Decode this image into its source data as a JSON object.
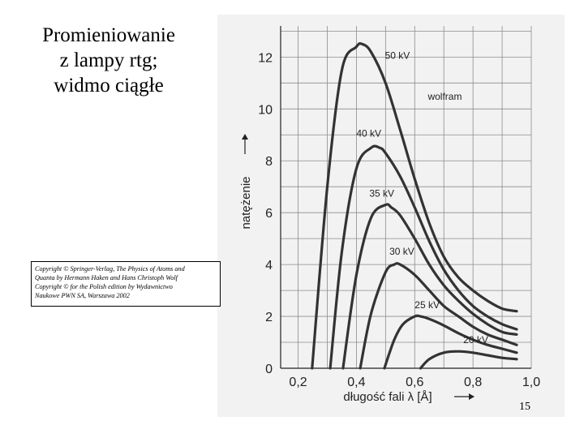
{
  "slide": {
    "title_lines": [
      "Promieniowanie",
      "z lampy rtg;",
      "widmo ciągłe"
    ],
    "copyright_lines": [
      "Copyright © Springer-Verlag, The Physics of Atoms and",
      "Quanta by Hermann Haken and Hans Christoph Wolf",
      "Copyright © for the Polish edition by Wydawnictwo",
      "Naukowe PWN SA, Warszawa 2002"
    ],
    "page_number": "15"
  },
  "chart_data": {
    "type": "line",
    "xlabel": "długość fali λ [Å]",
    "ylabel": "natężenie",
    "xlim": [
      0.14,
      1.0
    ],
    "ylim": [
      0,
      13.2
    ],
    "x_ticks": [
      "0,2",
      "0,4",
      "0,6",
      "0,8",
      "1,0"
    ],
    "y_ticks": [
      "0",
      "2",
      "4",
      "6",
      "8",
      "10",
      "12"
    ],
    "grid": true,
    "annotations": [
      "wolfram"
    ],
    "series": [
      {
        "name": "50 kV",
        "x": [
          0.248,
          0.3,
          0.35,
          0.4,
          0.42,
          0.45,
          0.5,
          0.55,
          0.6,
          0.65,
          0.7,
          0.75,
          0.8,
          0.85,
          0.9,
          0.95
        ],
        "y": [
          0,
          7.0,
          11.5,
          12.4,
          12.5,
          12.2,
          11.0,
          9.2,
          7.3,
          5.6,
          4.3,
          3.5,
          3.0,
          2.6,
          2.3,
          2.2
        ]
      },
      {
        "name": "40 kV",
        "x": [
          0.31,
          0.35,
          0.4,
          0.45,
          0.48,
          0.5,
          0.55,
          0.6,
          0.65,
          0.7,
          0.75,
          0.8,
          0.85,
          0.9,
          0.95
        ],
        "y": [
          0,
          4.5,
          7.7,
          8.5,
          8.5,
          8.3,
          7.4,
          6.2,
          4.9,
          3.8,
          3.0,
          2.4,
          2.0,
          1.7,
          1.5
        ]
      },
      {
        "name": "35 kV",
        "x": [
          0.354,
          0.4,
          0.45,
          0.5,
          0.52,
          0.55,
          0.6,
          0.65,
          0.7,
          0.75,
          0.8,
          0.85,
          0.9,
          0.95
        ],
        "y": [
          0,
          3.6,
          5.8,
          6.3,
          6.2,
          5.9,
          5.0,
          4.0,
          3.2,
          2.6,
          2.1,
          1.7,
          1.4,
          1.3
        ]
      },
      {
        "name": "30 kV",
        "x": [
          0.413,
          0.45,
          0.5,
          0.53,
          0.55,
          0.6,
          0.65,
          0.7,
          0.75,
          0.8,
          0.85,
          0.9,
          0.95
        ],
        "y": [
          0,
          2.1,
          3.7,
          4.0,
          4.0,
          3.6,
          3.0,
          2.4,
          2.0,
          1.6,
          1.3,
          1.1,
          0.9
        ]
      },
      {
        "name": "25 kV",
        "x": [
          0.496,
          0.53,
          0.56,
          0.6,
          0.62,
          0.65,
          0.7,
          0.75,
          0.8,
          0.85,
          0.9,
          0.95
        ],
        "y": [
          0,
          1.1,
          1.7,
          2.0,
          2.0,
          1.9,
          1.65,
          1.35,
          1.1,
          0.9,
          0.75,
          0.6
        ]
      },
      {
        "name": "20 kV",
        "x": [
          0.62,
          0.65,
          0.7,
          0.75,
          0.8,
          0.85,
          0.9,
          0.95
        ],
        "y": [
          0,
          0.35,
          0.6,
          0.65,
          0.6,
          0.5,
          0.4,
          0.35
        ]
      }
    ],
    "colors": {
      "curve": "#333333",
      "grid": "#8c8c8c",
      "axis": "#222222",
      "scan_bg": "#f2f2f2"
    }
  }
}
